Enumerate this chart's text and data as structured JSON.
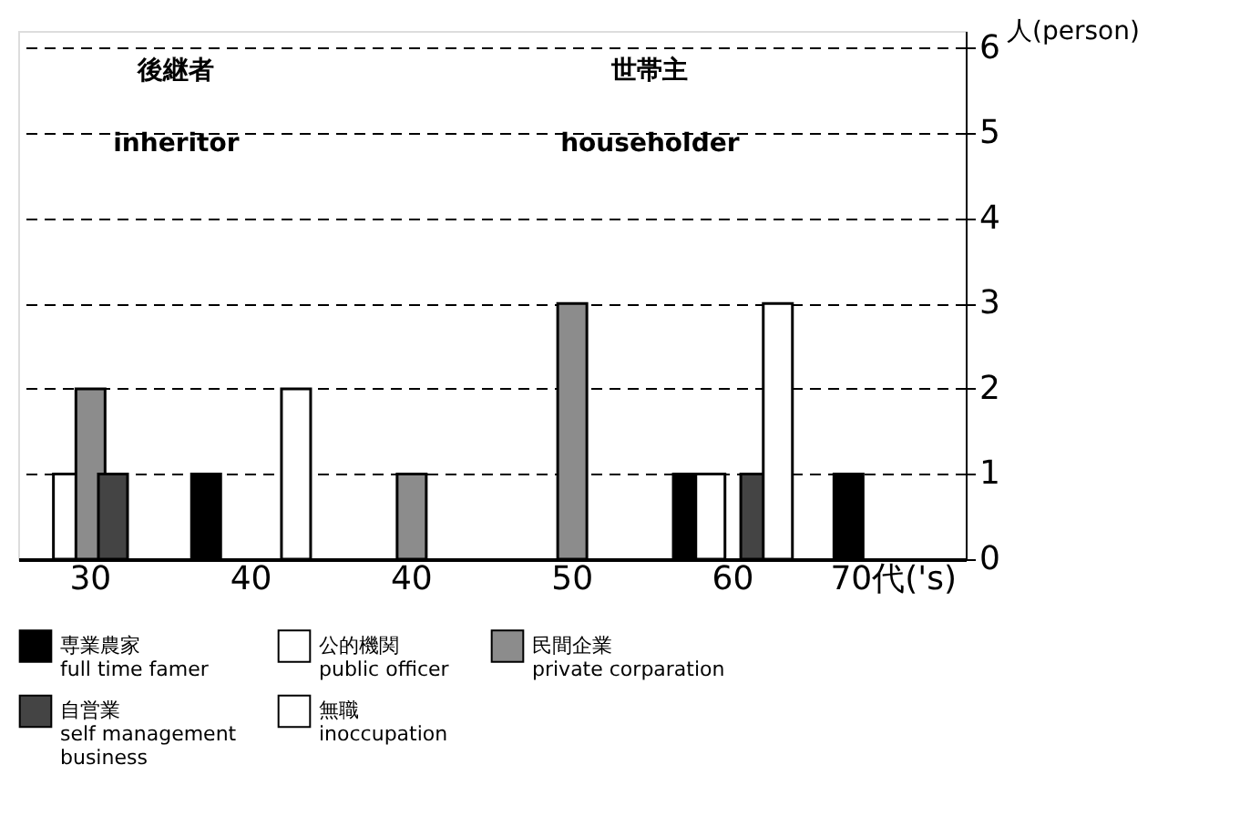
{
  "chart_data": {
    "type": "bar",
    "ylabel": "人(person)",
    "categories": [
      "30",
      "40",
      "40",
      "50",
      "60",
      "70代('s)"
    ],
    "series": [
      {
        "name": "専業農家\nfull time famer",
        "color": "#000000",
        "values": [
          null,
          1,
          null,
          null,
          1,
          1
        ]
      },
      {
        "name": "公的機関\npublic officer",
        "color": "#ffffff",
        "values": [
          1,
          null,
          null,
          null,
          1,
          null
        ]
      },
      {
        "name": "民間企業\nprivate corparation",
        "color": "#8c8c8c",
        "values": [
          2,
          null,
          1,
          3,
          null,
          null
        ]
      },
      {
        "name": "自営業\nself management\nbusiness",
        "color": "#444444",
        "values": [
          1,
          null,
          null,
          null,
          1,
          null
        ]
      },
      {
        "name": "無職\ninoccupation",
        "color": "#ffffff",
        "values": [
          null,
          2,
          null,
          null,
          3,
          null
        ]
      }
    ],
    "ylim": [
      0,
      6.2
    ],
    "yticks": [
      0,
      1,
      2,
      3,
      4,
      5,
      6
    ],
    "annotations": [
      "後継者\ninheritor",
      "世帯主\nhouseholder"
    ],
    "grid": "y",
    "legend": "bottom"
  }
}
